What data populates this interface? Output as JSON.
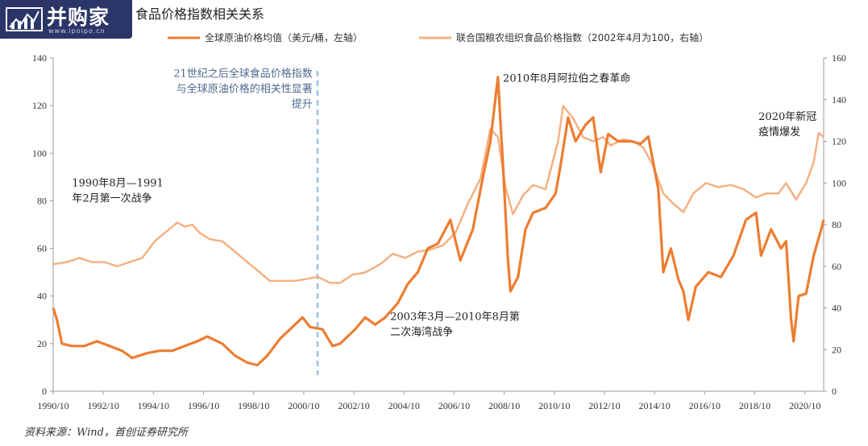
{
  "logo": {
    "name": "并购家",
    "url": "www.ipoipo.cn",
    "icon": "building-chart-logo"
  },
  "title": "食品价格指数相关关系",
  "source": "资料来源：Wind，首创证券研究所",
  "colors": {
    "oil": "#ed7d31",
    "food": "#f4b183",
    "divider": "#9dc3e6"
  },
  "chart_data": {
    "type": "line",
    "x_ticks": [
      "1990/10",
      "1992/10",
      "1994/10",
      "1996/10",
      "1998/10",
      "2000/10",
      "2002/10",
      "2004/10",
      "2006/10",
      "2008/10",
      "2010/10",
      "2012/10",
      "2014/10",
      "2016/10",
      "2018/10",
      "2020/10"
    ],
    "x_range": [
      1990.75,
      2021.5
    ],
    "ylim_left": [
      0,
      140
    ],
    "ylim_right": [
      0,
      160
    ],
    "yticks_left": [
      0,
      20,
      40,
      60,
      80,
      100,
      120,
      140
    ],
    "yticks_right": [
      0,
      20,
      40,
      60,
      80,
      100,
      120,
      140,
      160
    ],
    "series": [
      {
        "name": "全球原油价格均值（美元/桶，左轴）",
        "axis": "left",
        "points": [
          [
            1990.75,
            35
          ],
          [
            1990.9,
            30
          ],
          [
            1991.1,
            20
          ],
          [
            1991.5,
            19
          ],
          [
            1992.0,
            19
          ],
          [
            1992.5,
            21
          ],
          [
            1993.0,
            19
          ],
          [
            1993.5,
            17
          ],
          [
            1993.9,
            14
          ],
          [
            1994.5,
            16
          ],
          [
            1995.0,
            17
          ],
          [
            1995.5,
            17
          ],
          [
            1996.0,
            19
          ],
          [
            1996.5,
            21
          ],
          [
            1996.9,
            23
          ],
          [
            1997.5,
            20
          ],
          [
            1998.0,
            15
          ],
          [
            1998.5,
            12
          ],
          [
            1998.9,
            11
          ],
          [
            1999.3,
            15
          ],
          [
            1999.8,
            22
          ],
          [
            2000.3,
            27
          ],
          [
            2000.7,
            31
          ],
          [
            2001.0,
            27
          ],
          [
            2001.5,
            26
          ],
          [
            2001.9,
            19
          ],
          [
            2002.2,
            20
          ],
          [
            2002.8,
            26
          ],
          [
            2003.2,
            31
          ],
          [
            2003.6,
            28
          ],
          [
            2004.0,
            31
          ],
          [
            2004.5,
            37
          ],
          [
            2004.9,
            45
          ],
          [
            2005.3,
            50
          ],
          [
            2005.7,
            60
          ],
          [
            2006.1,
            62
          ],
          [
            2006.6,
            72
          ],
          [
            2007.0,
            55
          ],
          [
            2007.5,
            68
          ],
          [
            2007.9,
            90
          ],
          [
            2008.2,
            105
          ],
          [
            2008.5,
            132
          ],
          [
            2008.7,
            95
          ],
          [
            2008.9,
            55
          ],
          [
            2009.0,
            42
          ],
          [
            2009.3,
            48
          ],
          [
            2009.6,
            68
          ],
          [
            2009.9,
            75
          ],
          [
            2010.4,
            77
          ],
          [
            2010.8,
            83
          ],
          [
            2011.0,
            95
          ],
          [
            2011.3,
            115
          ],
          [
            2011.6,
            105
          ],
          [
            2012.0,
            112
          ],
          [
            2012.3,
            115
          ],
          [
            2012.6,
            92
          ],
          [
            2012.9,
            108
          ],
          [
            2013.3,
            105
          ],
          [
            2013.8,
            105
          ],
          [
            2014.2,
            104
          ],
          [
            2014.5,
            107
          ],
          [
            2014.9,
            85
          ],
          [
            2015.1,
            50
          ],
          [
            2015.4,
            60
          ],
          [
            2015.7,
            47
          ],
          [
            2015.9,
            42
          ],
          [
            2016.1,
            30
          ],
          [
            2016.4,
            44
          ],
          [
            2016.9,
            50
          ],
          [
            2017.4,
            48
          ],
          [
            2017.9,
            57
          ],
          [
            2018.4,
            72
          ],
          [
            2018.8,
            75
          ],
          [
            2019.0,
            57
          ],
          [
            2019.4,
            68
          ],
          [
            2019.8,
            60
          ],
          [
            2020.0,
            63
          ],
          [
            2020.2,
            30
          ],
          [
            2020.3,
            21
          ],
          [
            2020.5,
            40
          ],
          [
            2020.8,
            41
          ],
          [
            2021.1,
            57
          ],
          [
            2021.4,
            68
          ],
          [
            2021.5,
            72
          ]
        ]
      },
      {
        "name": "联合国粮农组织食品价格指数（2002年4月为100，右轴）",
        "axis": "right",
        "points": [
          [
            1990.75,
            61
          ],
          [
            1991.3,
            62
          ],
          [
            1991.8,
            64
          ],
          [
            1992.3,
            62
          ],
          [
            1992.8,
            62
          ],
          [
            1993.3,
            60
          ],
          [
            1993.8,
            62
          ],
          [
            1994.3,
            64
          ],
          [
            1994.8,
            72
          ],
          [
            1995.3,
            77
          ],
          [
            1995.7,
            81
          ],
          [
            1996.0,
            79
          ],
          [
            1996.3,
            80
          ],
          [
            1996.6,
            76
          ],
          [
            1997.0,
            73
          ],
          [
            1997.5,
            72
          ],
          [
            1998.0,
            67
          ],
          [
            1998.5,
            62
          ],
          [
            1998.9,
            58
          ],
          [
            1999.4,
            53
          ],
          [
            1999.9,
            53
          ],
          [
            2000.4,
            53
          ],
          [
            2000.9,
            54
          ],
          [
            2001.3,
            55
          ],
          [
            2001.8,
            52
          ],
          [
            2002.2,
            52
          ],
          [
            2002.7,
            56
          ],
          [
            2003.2,
            57
          ],
          [
            2003.8,
            61
          ],
          [
            2004.3,
            66
          ],
          [
            2004.8,
            64
          ],
          [
            2005.3,
            67
          ],
          [
            2005.8,
            68
          ],
          [
            2006.3,
            70
          ],
          [
            2006.8,
            76
          ],
          [
            2007.3,
            90
          ],
          [
            2007.8,
            102
          ],
          [
            2008.2,
            126
          ],
          [
            2008.5,
            122
          ],
          [
            2008.8,
            98
          ],
          [
            2009.1,
            85
          ],
          [
            2009.5,
            94
          ],
          [
            2009.9,
            99
          ],
          [
            2010.4,
            97
          ],
          [
            2010.9,
            120
          ],
          [
            2011.1,
            137
          ],
          [
            2011.5,
            131
          ],
          [
            2011.9,
            122
          ],
          [
            2012.3,
            120
          ],
          [
            2012.7,
            122
          ],
          [
            2013.0,
            118
          ],
          [
            2013.5,
            121
          ],
          [
            2013.9,
            120
          ],
          [
            2014.3,
            117
          ],
          [
            2014.7,
            108
          ],
          [
            2015.1,
            95
          ],
          [
            2015.5,
            90
          ],
          [
            2015.9,
            86
          ],
          [
            2016.3,
            95
          ],
          [
            2016.8,
            100
          ],
          [
            2017.3,
            98
          ],
          [
            2017.8,
            99
          ],
          [
            2018.3,
            97
          ],
          [
            2018.8,
            93
          ],
          [
            2019.2,
            95
          ],
          [
            2019.7,
            95
          ],
          [
            2020.0,
            100
          ],
          [
            2020.4,
            92
          ],
          [
            2020.8,
            100
          ],
          [
            2021.1,
            110
          ],
          [
            2021.3,
            124
          ],
          [
            2021.5,
            122
          ]
        ]
      }
    ],
    "vline": {
      "x": 2001.3,
      "style": "dashed"
    },
    "annotations": [
      {
        "lines": [
          "21世纪之后全球食品价格指数",
          "与全球原油价格的相关性显著",
          "提升"
        ],
        "x": 2001.1,
        "y_left": 132,
        "align": "end",
        "color": "blue"
      },
      {
        "lines": [
          "2010年8月阿拉伯之春革命"
        ],
        "x": 2008.7,
        "y_left": 130,
        "align": "start",
        "color": "dark"
      },
      {
        "lines": [
          "2020年新冠",
          "疫情爆发"
        ],
        "x": 2018.9,
        "y_left": 114,
        "align": "start",
        "color": "dark"
      },
      {
        "lines": [
          "1990年8月—1991",
          "年2月第一次战争"
        ],
        "x": 1991.5,
        "y_left": 86,
        "align": "start",
        "color": "dark"
      },
      {
        "lines": [
          "2003年3月—2010年8月第",
          "二次海湾战争"
        ],
        "x": 2004.2,
        "y_left": 30,
        "align": "start",
        "color": "dark"
      }
    ],
    "legend_position": "top"
  }
}
